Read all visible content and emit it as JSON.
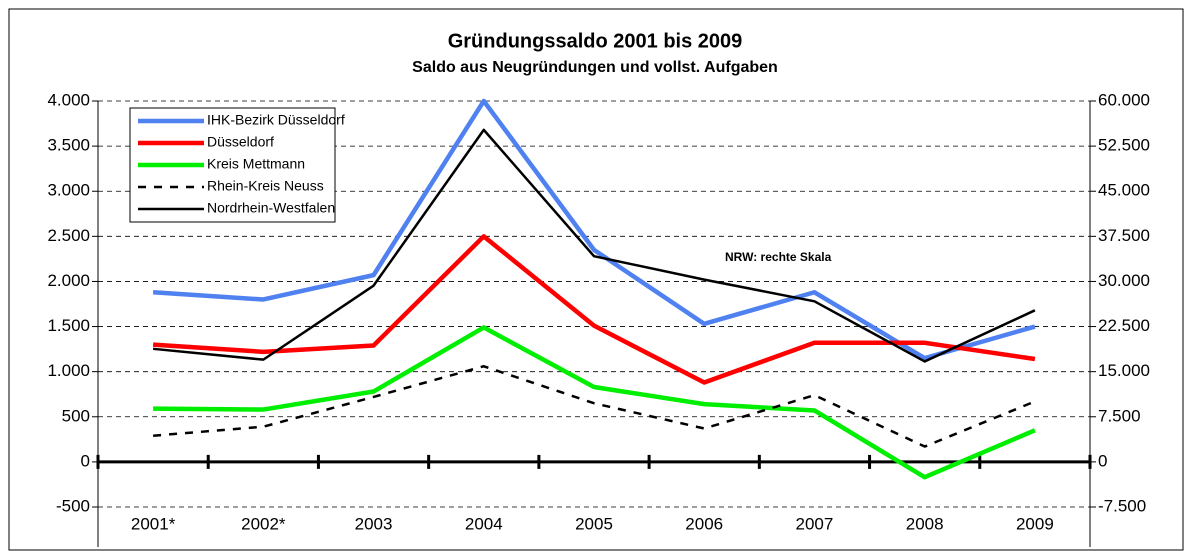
{
  "chart_data": {
    "type": "line",
    "title": "Gründungssaldo 2001 bis 2009",
    "subtitle": "Saldo aus Neugründungen und vollst. Aufgaben",
    "annotation": "NRW: rechte Skala",
    "categories": [
      "2001*",
      "2002*",
      "2003",
      "2004",
      "2005",
      "2006",
      "2007",
      "2008",
      "2009"
    ],
    "series": [
      {
        "name": "IHK-Bezirk Düsseldorf",
        "color": "#4f81f0",
        "values": [
          1880,
          1800,
          2070,
          4000,
          2350,
          1530,
          1880,
          1150,
          1500
        ]
      },
      {
        "name": "Düsseldorf",
        "color": "#ff0000",
        "values": [
          1300,
          1220,
          1290,
          2500,
          1510,
          880,
          1320,
          1320,
          1140
        ]
      },
      {
        "name": "Kreis Mettmann",
        "color": "#00ee00",
        "values": [
          590,
          580,
          780,
          1490,
          830,
          640,
          570,
          -170,
          350
        ]
      },
      {
        "name": "Rhein-Kreis Neuss",
        "color": "#000000",
        "dash": true,
        "values": [
          290,
          390,
          720,
          1060,
          650,
          370,
          740,
          170,
          670
        ]
      },
      {
        "name": "Nordrhein-Westfalen",
        "color": "#000000",
        "axis": "y2",
        "values": [
          18800,
          17000,
          29300,
          55200,
          34200,
          30300,
          26700,
          16700,
          25200
        ]
      }
    ],
    "ylim": [
      -500,
      4000
    ],
    "yticks": [
      -500,
      0,
      {
        "value": 500,
        "label": "500"
      },
      {
        "value": 1000,
        "label": "1.000"
      },
      {
        "value": 1500,
        "label": "1.500"
      },
      {
        "value": 2000,
        "label": "2.000"
      },
      {
        "value": 2500,
        "label": "2.500"
      },
      {
        "value": 3000,
        "label": "3.000"
      },
      {
        "value": 3500,
        "label": "3.500"
      },
      {
        "value": 4000,
        "label": "4.000"
      }
    ],
    "y2lim": [
      -7500,
      60000
    ],
    "y2ticks": [
      {
        "value": -7500,
        "label": "-7.500"
      },
      0,
      {
        "value": 7500,
        "label": "7.500"
      },
      {
        "value": 15000,
        "label": "15.000"
      },
      {
        "value": 22500,
        "label": "22.500"
      },
      {
        "value": 30000,
        "label": "30.000"
      },
      {
        "value": 37500,
        "label": "37.500"
      },
      {
        "value": 45000,
        "label": "45.000"
      },
      {
        "value": 52500,
        "label": "52.500"
      },
      {
        "value": 60000,
        "label": "60.000"
      }
    ],
    "grid": true,
    "legend": "upper left"
  }
}
